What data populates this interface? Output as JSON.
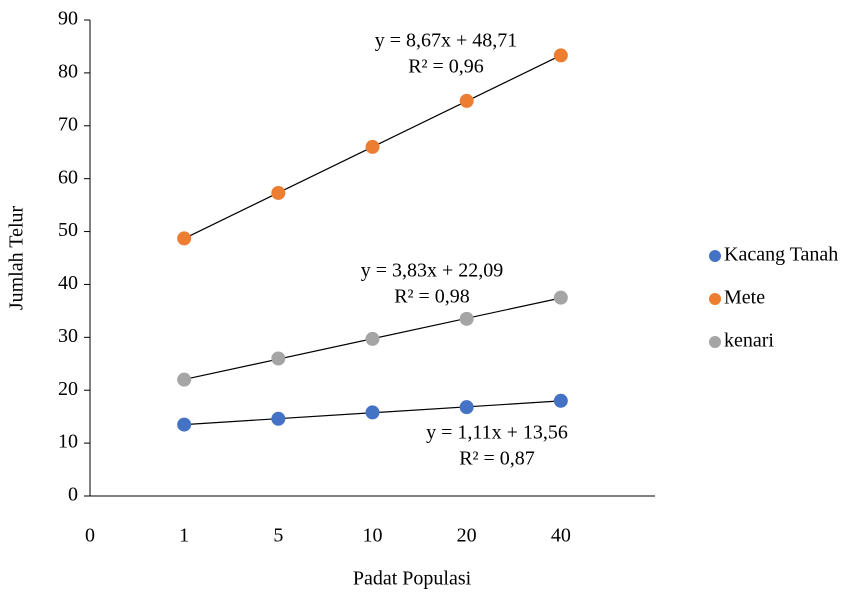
{
  "chart_data": {
    "type": "scatter",
    "x_label": "Padat Populasi",
    "y_label": "Jumlah Telur",
    "categories": [
      "0",
      "1",
      "5",
      "10",
      "20",
      "40"
    ],
    "series": [
      {
        "name": "Kacang Tanah",
        "color": "#4472c4",
        "values": [
          null,
          13.5,
          14.6,
          15.8,
          16.8,
          18.0
        ]
      },
      {
        "name": "Mete",
        "color": "#ed7d31",
        "values": [
          null,
          48.7,
          57.3,
          66.0,
          74.7,
          83.3
        ]
      },
      {
        "name": "kenari",
        "color": "#a5a5a5",
        "values": [
          null,
          22.0,
          26.0,
          29.7,
          33.5,
          37.5
        ]
      }
    ],
    "trendline": true,
    "annotations": [
      {
        "series": 0,
        "lines": [
          "y = 1,11x + 13,56",
          "R² = 0,87"
        ]
      },
      {
        "series": 1,
        "lines": [
          "y = 8,67x + 48,71",
          "R² = 0,96"
        ]
      },
      {
        "series": 2,
        "lines": [
          "y = 3,83x + 22,09",
          "R² = 0,98"
        ]
      }
    ],
    "ylim": [
      0,
      90
    ],
    "yticks": [
      0,
      10,
      20,
      30,
      40,
      50,
      60,
      70,
      80,
      90
    ],
    "legend": "right"
  }
}
